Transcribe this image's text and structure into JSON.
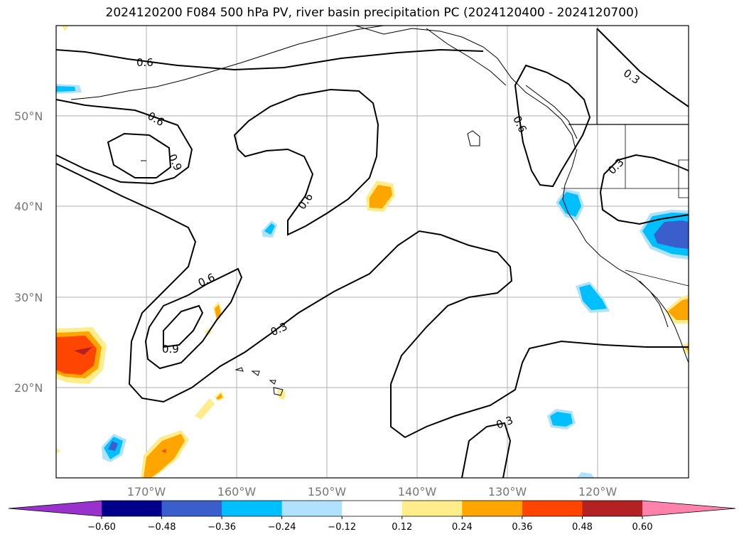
{
  "title": "2024120200 F084 500 hPa PV, river basin precipitation PC (2024120400 - 2024120700)",
  "map": {
    "lat_labels": [
      "50°N",
      "40°N",
      "30°N",
      "20°N"
    ],
    "lon_labels": [
      "170°W",
      "160°W",
      "150°W",
      "140°W",
      "130°W",
      "120°W"
    ],
    "contour_labels": [
      "0.6",
      "0.6",
      "0.9",
      "0.6",
      "0.6",
      "0.3",
      "0.6",
      "0.3",
      "0.9",
      "0.3",
      "0.3"
    ]
  },
  "colorbar": {
    "ticks": [
      "−0.60",
      "−0.48",
      "−0.36",
      "−0.24",
      "−0.12",
      "0.12",
      "0.24",
      "0.36",
      "0.48",
      "0.60"
    ],
    "colors": [
      "#9932cc",
      "#00008b",
      "#3a5fcd",
      "#00bfff",
      "#b0e2ff",
      "#ffffff",
      "#ffec8b",
      "#ffa500",
      "#ff4500",
      "#b22222",
      "#ff82ab"
    ]
  }
}
